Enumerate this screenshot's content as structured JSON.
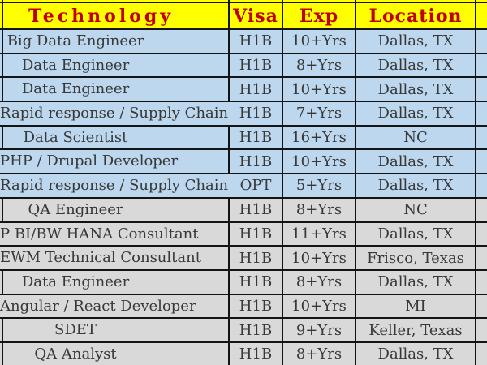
{
  "colors": {
    "header_bg": "#ffff00",
    "header_text": "#c00000",
    "row_blue": "#bdd7ee",
    "row_gray": "#d9d9d9",
    "gridline": "#141414",
    "body_text": "#383838"
  },
  "table": {
    "headers": [
      "Technology",
      "Visa",
      "Exp",
      "Location"
    ],
    "rows": [
      {
        "technology": "Big Data Engineer",
        "visa": "H1B",
        "exp": "10+Yrs",
        "location": "Dallas, TX",
        "fill": "blue",
        "clipped": false
      },
      {
        "technology": "Data Engineer",
        "visa": "H1B",
        "exp": "8+Yrs",
        "location": "Dallas, TX",
        "fill": "blue",
        "clipped": false
      },
      {
        "technology": "Data Engineer",
        "visa": "H1B",
        "exp": "10+Yrs",
        "location": "Dallas, TX",
        "fill": "blue",
        "clipped": false
      },
      {
        "technology": "Rapid response / Supply Chain",
        "visa": "H1B",
        "exp": "7+Yrs",
        "location": "Dallas, TX",
        "fill": "blue",
        "clipped": true
      },
      {
        "technology": "Data Scientist",
        "visa": "H1B",
        "exp": "16+Yrs",
        "location": "NC",
        "fill": "blue",
        "clipped": false
      },
      {
        "technology": "PHP / Drupal Developer",
        "visa": "H1B",
        "exp": "10+Yrs",
        "location": "Dallas, TX",
        "fill": "blue",
        "clipped": true
      },
      {
        "technology": "Rapid response / Supply Chain",
        "visa": "OPT",
        "exp": "5+Yrs",
        "location": "Dallas, TX",
        "fill": "blue",
        "clipped": true
      },
      {
        "technology": "QA Engineer",
        "visa": "H1B",
        "exp": "8+Yrs",
        "location": "NC",
        "fill": "gray",
        "clipped": false
      },
      {
        "technology": "P BI/BW HANA Consultant",
        "visa": "H1B",
        "exp": "11+Yrs",
        "location": "Dallas, TX",
        "fill": "gray",
        "clipped": true
      },
      {
        "technology": "EWM Technical Consultant",
        "visa": "H1B",
        "exp": "10+Yrs",
        "location": "Frisco, Texas",
        "fill": "gray",
        "clipped": true
      },
      {
        "technology": "Data Engineer",
        "visa": "H1B",
        "exp": "8+Yrs",
        "location": "Dallas, TX",
        "fill": "gray",
        "clipped": false
      },
      {
        "technology": "Angular / React Developer",
        "visa": "H1B",
        "exp": "10+Yrs",
        "location": "MI",
        "fill": "gray",
        "clipped": true
      },
      {
        "technology": "SDET",
        "visa": "H1B",
        "exp": "9+Yrs",
        "location": "Keller, Texas",
        "fill": "gray",
        "clipped": false
      },
      {
        "technology": "QA Analyst",
        "visa": "H1B",
        "exp": "8+Yrs",
        "location": "Dallas, TX",
        "fill": "gray",
        "clipped": false
      }
    ]
  }
}
